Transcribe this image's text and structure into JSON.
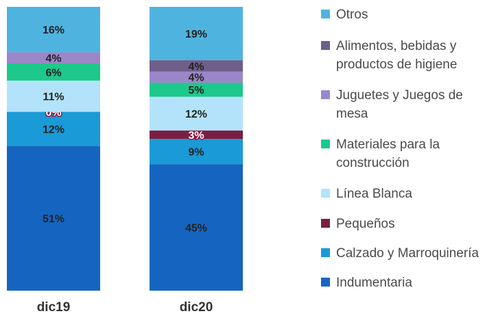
{
  "chart_data": {
    "type": "bar",
    "stacked": true,
    "normalized": true,
    "categories": [
      "dic19",
      "dic20"
    ],
    "series": [
      {
        "name": "Indumentaria",
        "color": "#1565c0",
        "values": [
          51,
          45
        ],
        "labels": [
          "51%",
          "45%"
        ]
      },
      {
        "name": "Calzado y Marroquinería",
        "color": "#1a9ad6",
        "values": [
          12,
          9
        ],
        "labels": [
          "12%",
          "9%"
        ]
      },
      {
        "name": "Pequeños",
        "color": "#7a1f43",
        "values": [
          0,
          3
        ],
        "labels": [
          "0%",
          "3%"
        ]
      },
      {
        "name": "Línea Blanca",
        "color": "#b3e3fb",
        "values": [
          11,
          12
        ],
        "labels": [
          "11%",
          "12%"
        ]
      },
      {
        "name": "Materiales para la construcción",
        "color": "#1dc98a",
        "values": [
          6,
          5
        ],
        "labels": [
          "6%",
          "5%"
        ]
      },
      {
        "name": "Juguetes y Juegos de mesa",
        "color": "#9b86c9",
        "values": [
          4,
          4
        ],
        "labels": [
          "4%",
          "4%"
        ]
      },
      {
        "name": "Alimentos, bebidas y productos de higiene",
        "color": "#6f5e8a",
        "values": [
          0,
          4
        ],
        "labels": [
          "",
          "4%"
        ]
      },
      {
        "name": "Otros",
        "color": "#4fb3e0",
        "values": [
          16,
          19
        ],
        "labels": [
          "16%",
          "19%"
        ]
      }
    ],
    "legend_position": "right",
    "grid": false
  },
  "legend": {
    "items": [
      {
        "text": "Otros",
        "color": "#4fb3e0"
      },
      {
        "text": "Alimentos, bebidas y\nproductos de higiene",
        "color": "#6f5e8a"
      },
      {
        "text": "Juguetes y Juegos de\nmesa",
        "color": "#9b86c9"
      },
      {
        "text": "Materiales para la\nconstrucción",
        "color": "#1dc98a"
      },
      {
        "text": "Línea Blanca",
        "color": "#b3e3fb"
      },
      {
        "text": "Pequeños",
        "color": "#7a1f43"
      },
      {
        "text": "Calzado y Marroquinería",
        "color": "#1a9ad6"
      },
      {
        "text": "Indumentaria",
        "color": "#1565c0"
      }
    ]
  }
}
